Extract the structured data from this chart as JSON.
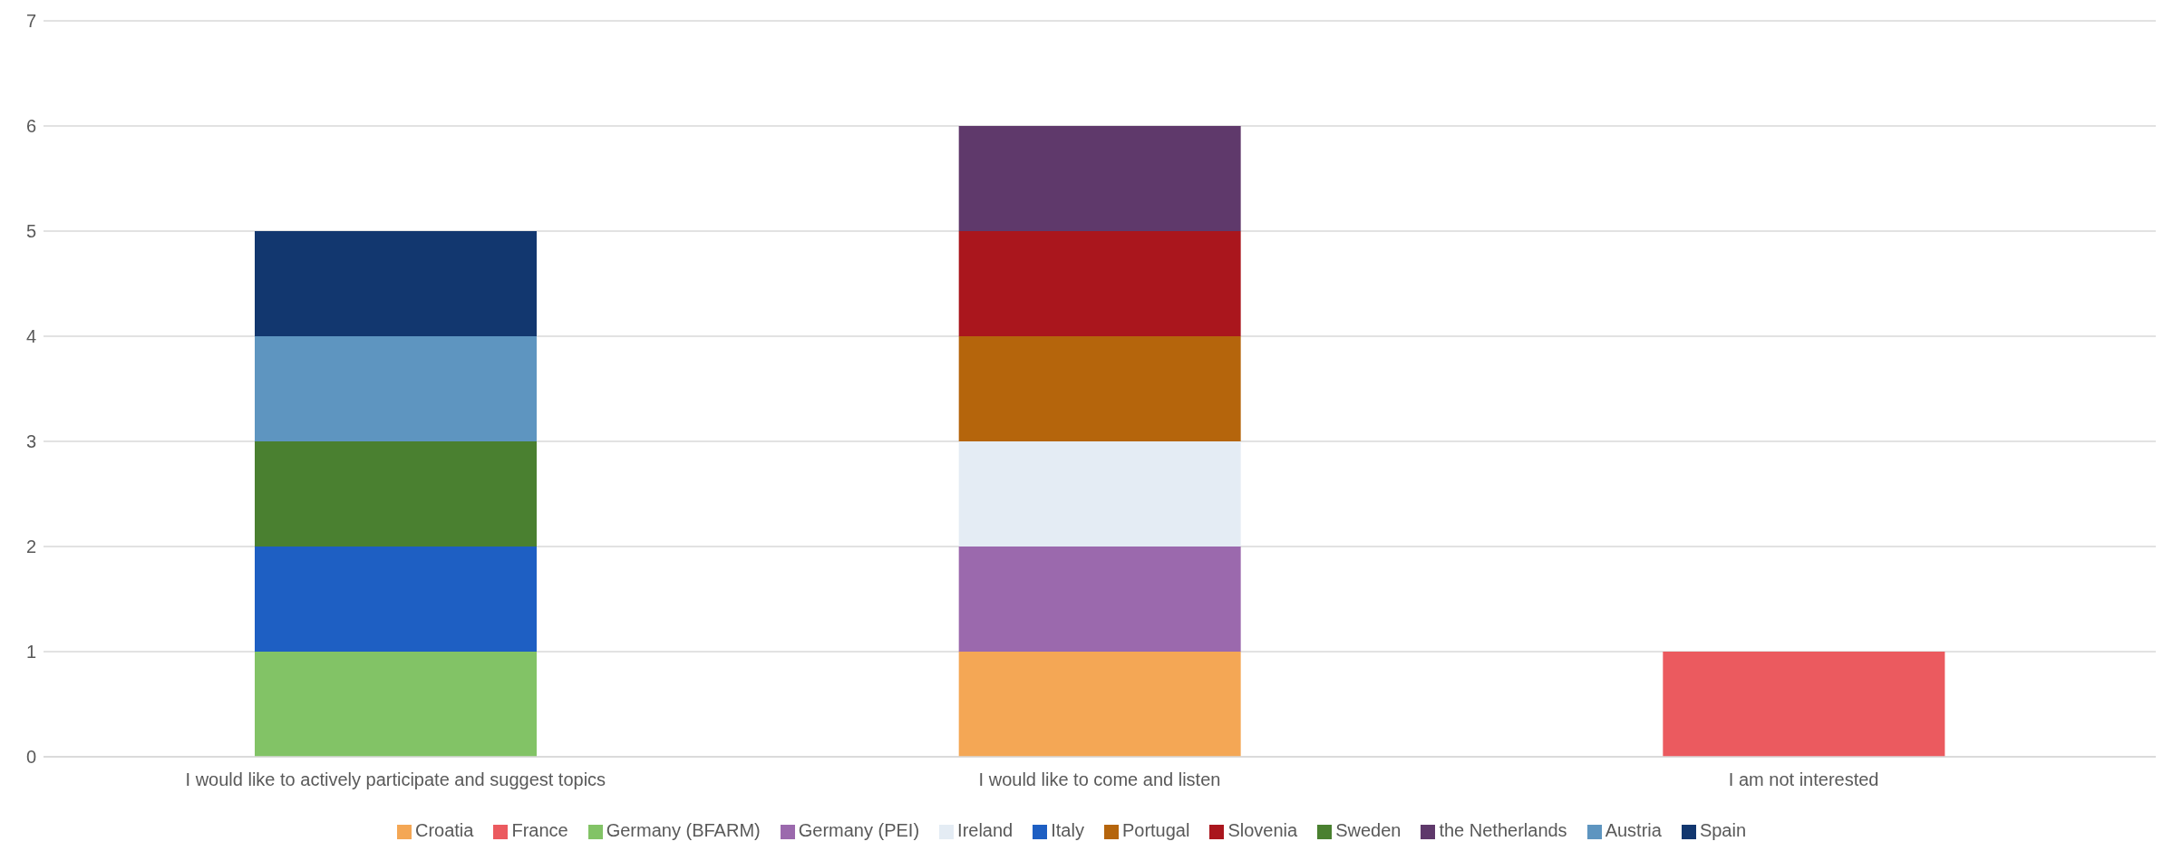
{
  "chart_data": {
    "type": "bar",
    "stacked": true,
    "categories": [
      "I would like to actively participate and suggest topics",
      "I would like to come and  listen",
      "I am not interested"
    ],
    "series": [
      {
        "name": "Croatia",
        "color": "#f4a755",
        "values": [
          null,
          1,
          null
        ]
      },
      {
        "name": "France",
        "color": "#eb5a5f",
        "values": [
          null,
          null,
          1
        ]
      },
      {
        "name": "Germany (BFARM)",
        "color": "#82c366",
        "values": [
          1,
          null,
          null
        ]
      },
      {
        "name": "Germany (PEI)",
        "color": "#9b69ad",
        "values": [
          null,
          1,
          null
        ]
      },
      {
        "name": "Ireland",
        "color": "#e4ecf4",
        "values": [
          null,
          1,
          null
        ]
      },
      {
        "name": "Italy",
        "color": "#1e5fc3",
        "values": [
          1,
          null,
          null
        ]
      },
      {
        "name": "Portugal",
        "color": "#b5650c",
        "values": [
          null,
          1,
          null
        ]
      },
      {
        "name": "Slovenia",
        "color": "#aa161d",
        "values": [
          null,
          1,
          null
        ]
      },
      {
        "name": "Sweden",
        "color": "#4a8030",
        "values": [
          1,
          null,
          null
        ]
      },
      {
        "name": "the Netherlands",
        "color": "#5f396b",
        "values": [
          null,
          1,
          null
        ]
      },
      {
        "name": "Austria",
        "color": "#5e95c0",
        "values": [
          1,
          null,
          null
        ]
      },
      {
        "name": "Spain",
        "color": "#12376f",
        "values": [
          1,
          null,
          null
        ]
      }
    ],
    "ylim": [
      0,
      7
    ],
    "yticks": [
      0,
      1,
      2,
      3,
      4,
      5,
      6,
      7
    ],
    "grid": "y",
    "legend": "bottom"
  }
}
